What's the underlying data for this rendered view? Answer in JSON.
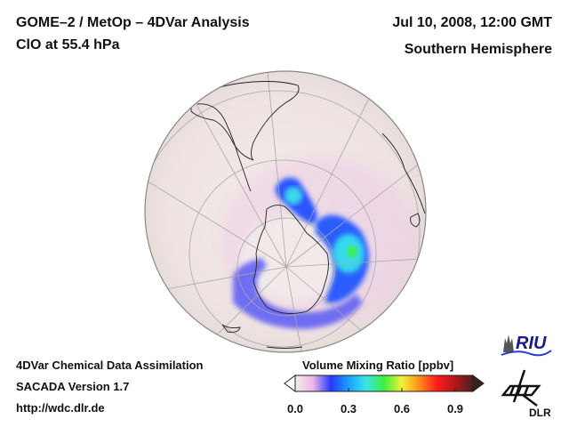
{
  "header": {
    "title": "GOME–2 / MetOp – 4DVar Analysis",
    "subtitle": "ClO at 55.4 hPa",
    "datetime": "Jul 10, 2008, 12:00 GMT",
    "region": "Southern Hemisphere"
  },
  "footer": {
    "line1": "4DVar Chemical Data Assimilation",
    "line2": "SACADA Version 1.7",
    "line3": "http://wdc.dlr.de"
  },
  "colorbar": {
    "title": "Volume Mixing Ratio [ppbv]",
    "min": 0.0,
    "max": 1.0,
    "ticks": [
      "0.0",
      "0.3",
      "0.6",
      "0.9"
    ],
    "tick_values": [
      0.0,
      0.3,
      0.6,
      0.9
    ],
    "colors": [
      "#f4ecea",
      "#e9b8e6",
      "#2838ff",
      "#1aa0ff",
      "#39e6e6",
      "#3cf03c",
      "#f4f03a",
      "#ff8a1a",
      "#ff1a1a",
      "#b01818",
      "#4a2020"
    ],
    "extend": "both"
  },
  "logos": {
    "riu": "RIU",
    "dlr": "DLR"
  },
  "map": {
    "projection": "orthographic",
    "hemisphere": "south",
    "background_color": "#f0e4e2",
    "features": [
      {
        "name": "vortex-edge-north-blob",
        "max_value": 0.45
      },
      {
        "name": "vortex-edge-east-blob",
        "max_value": 0.55
      },
      {
        "name": "vortex-edge-southwest-arc",
        "max_value": 0.2
      }
    ]
  }
}
